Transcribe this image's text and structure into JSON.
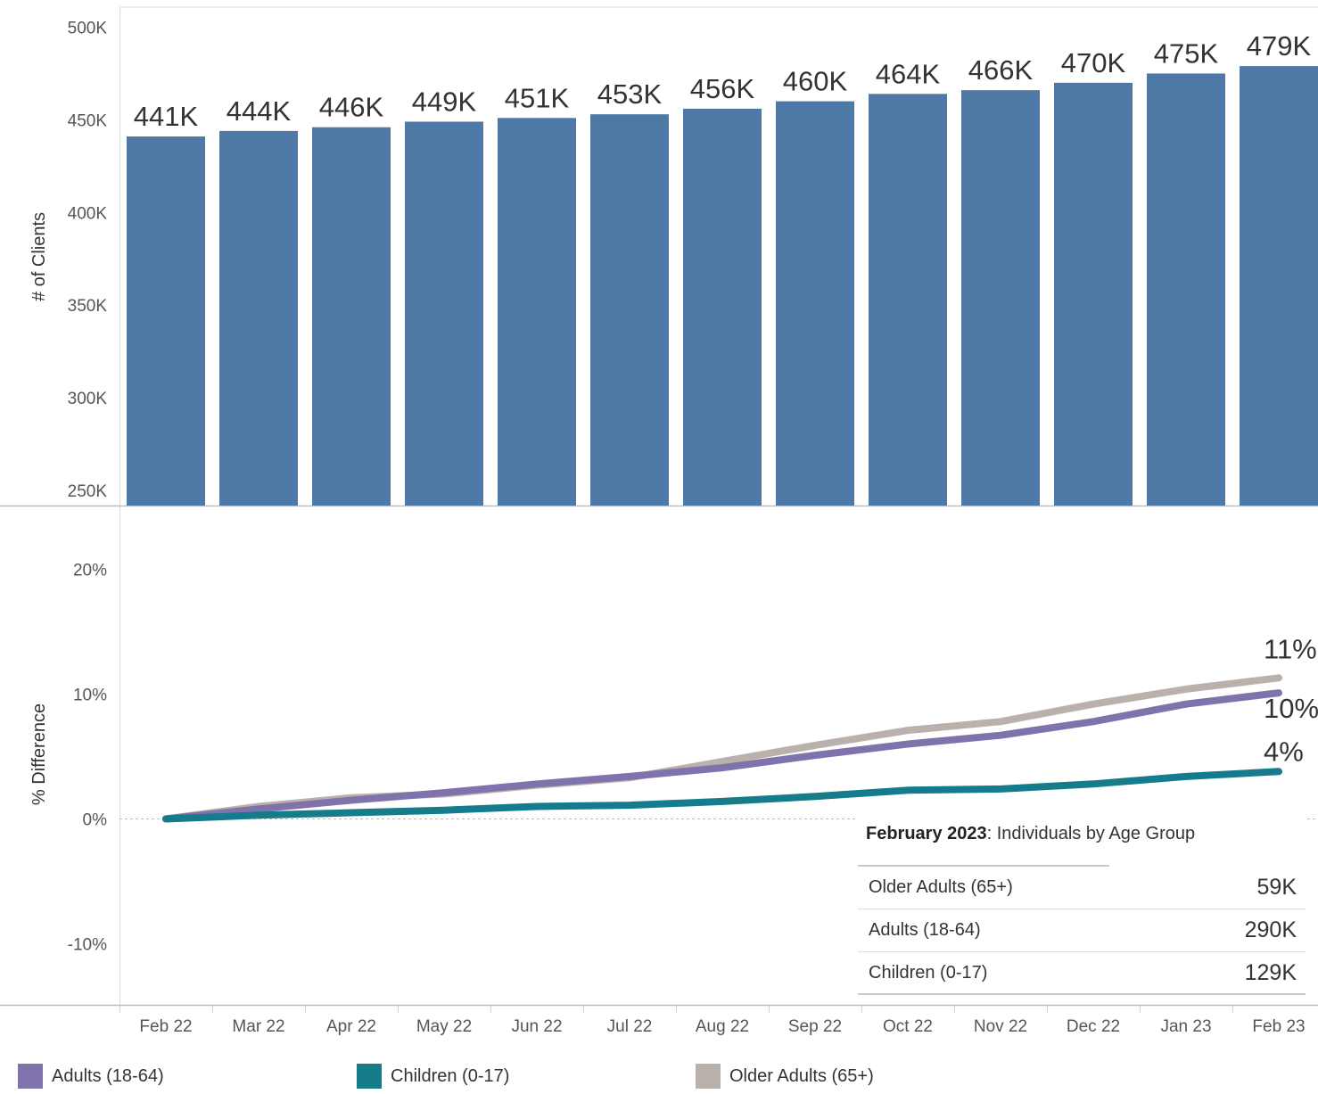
{
  "chart_data": [
    {
      "type": "bar",
      "ylabel": "# of Clients",
      "ylim": [
        250000,
        500000
      ],
      "ytick_values": [
        250000,
        300000,
        350000,
        400000,
        450000,
        500000
      ],
      "ytick_labels": [
        "250K",
        "300K",
        "350K",
        "400K",
        "450K",
        "500K"
      ],
      "categories": [
        "Feb 22",
        "Mar 22",
        "Apr 22",
        "May 22",
        "Jun 22",
        "Jul 22",
        "Aug 22",
        "Sep 22",
        "Oct 22",
        "Nov 22",
        "Dec 22",
        "Jan 23",
        "Feb 23"
      ],
      "values": [
        441000,
        444000,
        446000,
        449000,
        451000,
        453000,
        456000,
        460000,
        464000,
        466000,
        470000,
        475000,
        479000
      ],
      "data_labels": [
        "441K",
        "444K",
        "446K",
        "449K",
        "451K",
        "453K",
        "456K",
        "460K",
        "464K",
        "466K",
        "470K",
        "475K",
        "479K"
      ],
      "color": "#4e79a7"
    },
    {
      "type": "line",
      "ylabel": "% Difference",
      "ylim": [
        -15,
        25
      ],
      "ytick_values": [
        -10,
        0,
        10,
        20
      ],
      "ytick_labels": [
        "-10%",
        "0%",
        "10%",
        "20%"
      ],
      "x": [
        "Feb 22",
        "Mar 22",
        "Apr 22",
        "May 22",
        "Jun 22",
        "Jul 22",
        "Aug 22",
        "Sep 22",
        "Oct 22",
        "Nov 22",
        "Dec 22",
        "Jan 23",
        "Feb 23"
      ],
      "series": [
        {
          "name": "Older Adults (65+)",
          "color": "#bab0ac",
          "values": [
            0,
            1.0,
            1.7,
            2.0,
            2.7,
            3.3,
            4.6,
            5.9,
            7.1,
            7.8,
            9.2,
            10.4,
            11.3
          ],
          "end_label": "11%"
        },
        {
          "name": "Adults (18-64)",
          "color": "#8073ac",
          "values": [
            0,
            0.8,
            1.5,
            2.1,
            2.8,
            3.4,
            4.1,
            5.1,
            6.0,
            6.7,
            7.8,
            9.2,
            10.1
          ],
          "end_label": "10%"
        },
        {
          "name": "Children (0-17)",
          "color": "#167b8a",
          "values": [
            0,
            0.3,
            0.5,
            0.7,
            1.0,
            1.1,
            1.4,
            1.8,
            2.3,
            2.4,
            2.8,
            3.4,
            3.8
          ],
          "end_label": "4%"
        }
      ]
    }
  ],
  "summary": {
    "title_bold": "February 2023",
    "title_rest": ":  Individuals by Age Group",
    "rows": [
      {
        "label": "Older Adults (65+)",
        "value": "59K"
      },
      {
        "label": "Adults (18-64)",
        "value": "290K"
      },
      {
        "label": "Children (0-17)",
        "value": "129K"
      }
    ]
  },
  "legend": [
    {
      "label": "Adults (18-64)",
      "color": "#8073ac"
    },
    {
      "label": "Children (0-17)",
      "color": "#167b8a"
    },
    {
      "label": "Older Adults (65+)",
      "color": "#bab0ac"
    }
  ]
}
